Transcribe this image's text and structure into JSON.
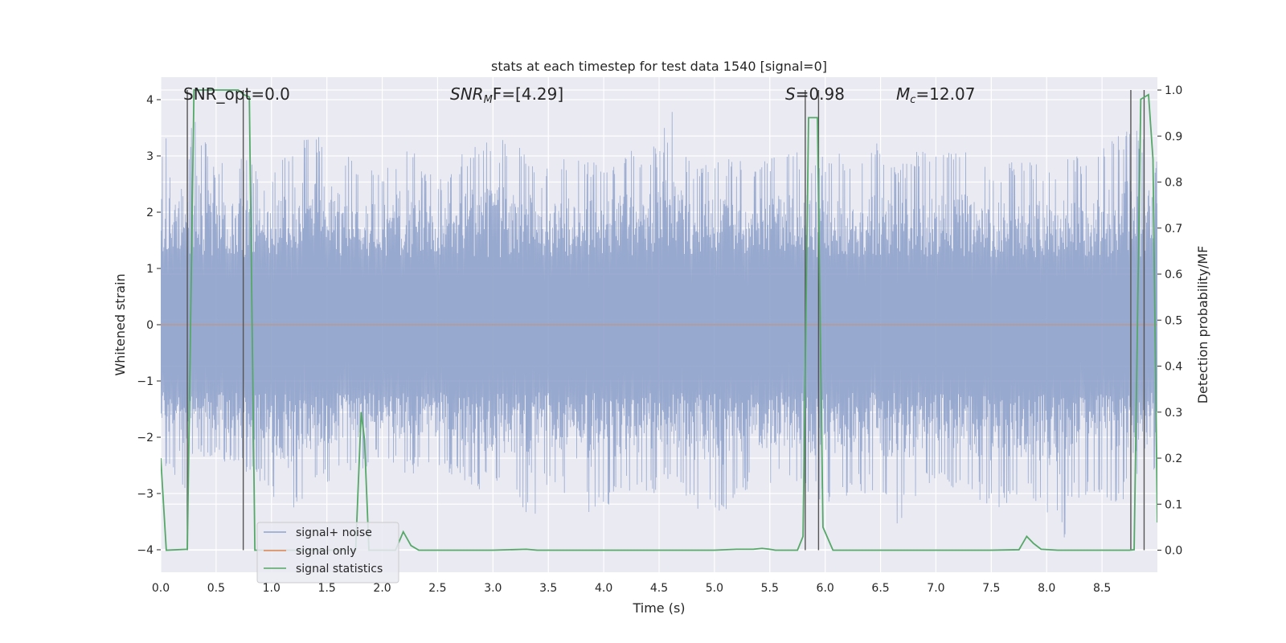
{
  "chart_data": {
    "type": "line",
    "title": "stats at each timestep for test data 1540 [signal=0]",
    "xlabel": "Time (s)",
    "ylabel": "Whitened strain",
    "y2label": "Detection probability/MF",
    "xlim": [
      0.0,
      9.0
    ],
    "ylim": [
      -4.4,
      4.4
    ],
    "y2lim": [
      -0.048,
      1.028
    ],
    "xticks": [
      0.0,
      0.5,
      1.0,
      1.5,
      2.0,
      2.5,
      3.0,
      3.5,
      4.0,
      4.5,
      5.0,
      5.5,
      6.0,
      6.5,
      7.0,
      7.5,
      8.0,
      8.5
    ],
    "xtick_labels": [
      "0.0",
      "0.5",
      "1.0",
      "1.5",
      "2.0",
      "2.5",
      "3.0",
      "3.5",
      "4.0",
      "4.5",
      "5.0",
      "5.5",
      "6.0",
      "6.5",
      "7.0",
      "7.5",
      "8.0",
      "8.5"
    ],
    "yticks": [
      -4,
      -3,
      -2,
      -1,
      0,
      1,
      2,
      3,
      4
    ],
    "ytick_labels": [
      "−4",
      "−3",
      "−2",
      "−1",
      "0",
      "1",
      "2",
      "3",
      "4"
    ],
    "y2ticks": [
      0.0,
      0.1,
      0.2,
      0.3,
      0.4,
      0.5,
      0.6,
      0.7,
      0.8,
      0.9,
      1.0
    ],
    "y2tick_labels": [
      "0.0",
      "0.1",
      "0.2",
      "0.3",
      "0.4",
      "0.5",
      "0.6",
      "0.7",
      "0.8",
      "0.9",
      "1.0"
    ],
    "annotations": {
      "snr_opt": "SNR_opt=0.0",
      "snr_mf_sym": "SNR",
      "snr_mf_sub": "M",
      "snr_mf_rest": "F=[4.29]",
      "s_sym": "S",
      "s_rest": "=0.98",
      "mc_sym": "M",
      "mc_sub": "c",
      "mc_rest": "=12.07"
    },
    "legend": {
      "position": "lower-left",
      "entries": [
        "signal+ noise",
        "signal only",
        "signal statistics"
      ]
    },
    "colors": {
      "noise": "#8fa2cb",
      "signal_only": "#dd8452",
      "statistics": "#55a868",
      "vlines": "#555555",
      "background": "#eaeaf2",
      "grid": "#ffffff"
    },
    "series": [
      {
        "name": "signal+ noise",
        "axis": "left",
        "envelope_t": [
          0.0,
          0.05,
          0.1,
          0.15,
          0.2,
          0.3,
          0.5,
          0.75,
          0.95,
          1.15,
          1.3,
          1.55,
          1.8,
          2.0,
          2.2,
          2.5,
          2.8,
          3.1,
          3.35,
          3.45,
          3.6,
          3.9,
          4.2,
          4.5,
          4.6,
          4.8,
          5.05,
          5.35,
          5.7,
          6.0,
          6.3,
          6.5,
          6.65,
          6.8,
          7.0,
          7.2,
          7.5,
          7.8,
          8.0,
          8.15,
          8.2,
          8.4,
          8.6,
          8.8,
          9.0
        ],
        "upper": [
          3.0,
          3.4,
          2.6,
          3.1,
          2.5,
          3.8,
          2.9,
          3.0,
          2.6,
          3.1,
          3.6,
          3.3,
          2.9,
          2.8,
          3.3,
          2.6,
          3.2,
          3.3,
          3.1,
          2.7,
          3.0,
          2.9,
          3.1,
          3.2,
          3.9,
          2.8,
          3.0,
          2.9,
          3.1,
          3.0,
          3.1,
          3.3,
          2.8,
          3.1,
          3.1,
          3.2,
          2.8,
          3.0,
          2.8,
          2.9,
          3.0,
          3.0,
          3.4,
          3.7,
          3.0
        ],
        "lower": [
          -2.6,
          -2.7,
          -2.4,
          -3.0,
          -3.1,
          -2.3,
          -2.4,
          -2.6,
          -2.9,
          -3.5,
          -3.2,
          -2.8,
          -2.6,
          -2.4,
          -2.7,
          -2.5,
          -2.9,
          -3.0,
          -3.6,
          -3.0,
          -2.9,
          -3.5,
          -3.0,
          -3.1,
          -2.7,
          -3.3,
          -3.4,
          -2.9,
          -2.9,
          -3.2,
          -3.0,
          -3.0,
          -3.6,
          -3.1,
          -2.9,
          -2.9,
          -3.3,
          -3.1,
          -3.4,
          -4.0,
          -3.2,
          -3.0,
          -3.2,
          -3.0,
          -2.7
        ]
      },
      {
        "name": "signal only",
        "axis": "left",
        "t": [
          0.0,
          9.0
        ],
        "values": [
          0.0,
          0.0
        ]
      },
      {
        "name": "signal statistics",
        "axis": "right",
        "t": [
          0.0,
          0.05,
          0.24,
          0.3,
          0.7,
          0.75,
          0.8,
          0.85,
          1.0,
          1.12,
          1.2,
          1.3,
          1.4,
          1.5,
          1.62,
          1.74,
          1.76,
          1.81,
          1.84,
          1.88,
          2.0,
          2.12,
          2.19,
          2.26,
          2.33,
          2.5,
          3.0,
          3.3,
          3.4,
          3.5,
          4.0,
          4.5,
          5.0,
          5.2,
          5.35,
          5.43,
          5.5,
          5.55,
          5.75,
          5.8,
          5.85,
          5.93,
          5.98,
          6.07,
          6.2,
          6.32,
          6.45,
          6.56,
          6.7,
          7.0,
          7.5,
          7.75,
          7.82,
          7.88,
          7.95,
          8.1,
          8.5,
          8.75,
          8.79,
          8.85,
          8.92,
          8.96,
          9.0
        ],
        "values": [
          0.2,
          0.0,
          0.002,
          1.0,
          1.0,
          0.99,
          0.985,
          0.0,
          0.0,
          0.0,
          0.0,
          0.0,
          0.0,
          0.0,
          0.0,
          0.0,
          0.0,
          0.3,
          0.24,
          0.0,
          0.0,
          0.0,
          0.04,
          0.01,
          0.0,
          0.0,
          0.0,
          0.002,
          0.0,
          0.0,
          0.0,
          0.0,
          0.0,
          0.002,
          0.002,
          0.004,
          0.002,
          0.0,
          0.0,
          0.03,
          0.94,
          0.94,
          0.05,
          0.0,
          0.0,
          0.0,
          0.0,
          0.0,
          0.0,
          0.0,
          0.0,
          0.001,
          0.03,
          0.015,
          0.002,
          0.0,
          0.0,
          0.0,
          0.001,
          0.98,
          0.99,
          0.85,
          0.06
        ]
      }
    ],
    "vlines_t": [
      0.24,
      0.745,
      5.82,
      5.94,
      8.76,
      8.88
    ]
  }
}
